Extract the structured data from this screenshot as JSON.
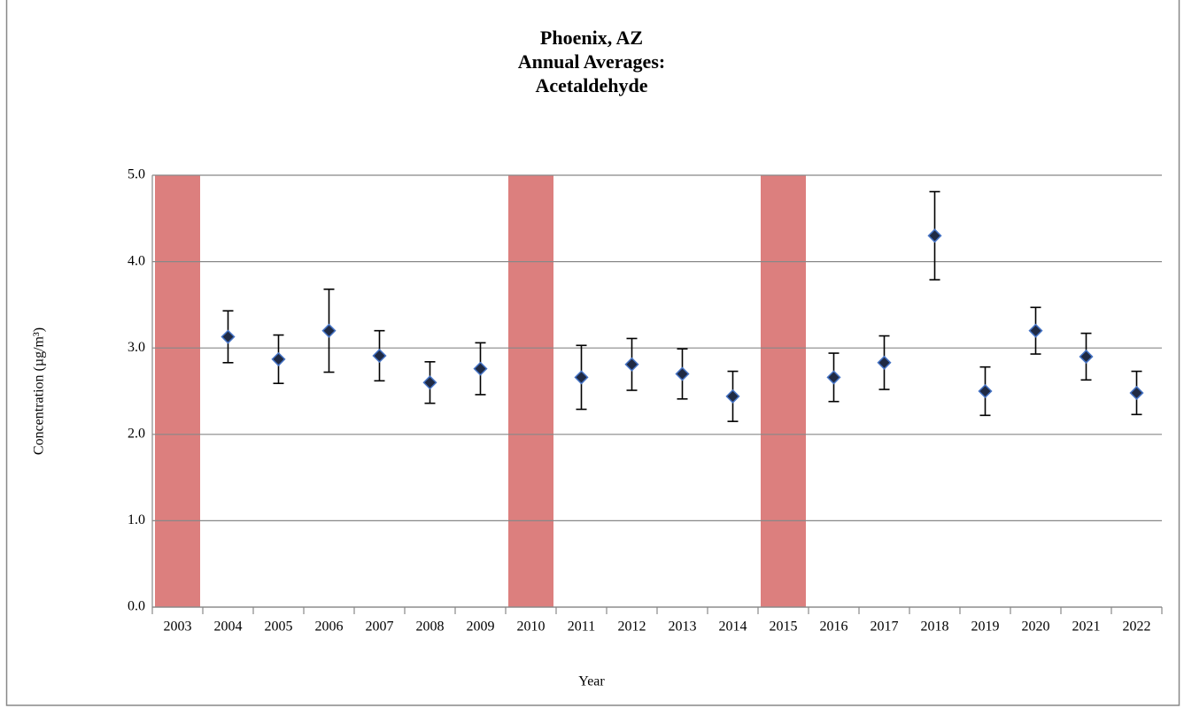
{
  "chart_data": {
    "type": "errorbar",
    "title": [
      "Phoenix, AZ",
      "Annual Averages:",
      "Acetaldehyde"
    ],
    "x_label": "Year",
    "y_label": "Concentration (µg/m³)",
    "categories": [
      "2003",
      "2004",
      "2005",
      "2006",
      "2007",
      "2008",
      "2009",
      "2010",
      "2011",
      "2012",
      "2013",
      "2014",
      "2015",
      "2016",
      "2017",
      "2018",
      "2019",
      "2020",
      "2021",
      "2022"
    ],
    "values": [
      null,
      3.13,
      2.87,
      3.2,
      2.91,
      2.6,
      2.76,
      null,
      2.66,
      2.81,
      2.7,
      2.44,
      null,
      2.66,
      2.83,
      4.3,
      2.5,
      3.2,
      2.9,
      2.48
    ],
    "errors": [
      null,
      0.3,
      0.28,
      0.48,
      0.29,
      0.24,
      0.3,
      null,
      0.37,
      0.3,
      0.29,
      0.29,
      null,
      0.28,
      0.31,
      0.51,
      0.28,
      0.27,
      0.27,
      0.25
    ],
    "color": "#1f2a44",
    "edge_color": "#4472c4",
    "missing_color": "#dc7f7e",
    "ylim": [
      0,
      5
    ],
    "yticks": [
      {
        "value": 0,
        "label": "0.0"
      },
      {
        "value": 1,
        "label": "1.0"
      },
      {
        "value": 2,
        "label": "2.0"
      },
      {
        "value": 3,
        "label": "3.0"
      },
      {
        "value": 4,
        "label": "4.0"
      },
      {
        "value": 5,
        "label": "5.0"
      }
    ],
    "grid": true
  }
}
